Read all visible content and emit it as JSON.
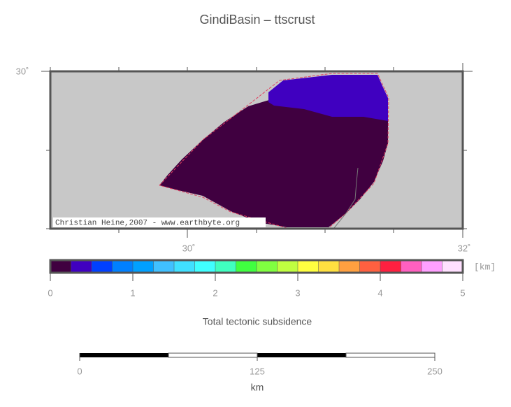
{
  "title": "GindiBasin – ttscrust",
  "map": {
    "lat_label": "30˚",
    "lon_labels": [
      "30˚",
      "32˚"
    ],
    "credit": "Christian Heine,2007 - www.earthbyte.org"
  },
  "colorbar": {
    "colors": [
      "#400040",
      "#4000c0",
      "#0040ff",
      "#0080ff",
      "#00a0ff",
      "#40c0ff",
      "#40e0ff",
      "#40ffff",
      "#40ffc0",
      "#40ff40",
      "#80ff40",
      "#c0ff40",
      "#ffff40",
      "#ffe040",
      "#ffa040",
      "#ff6040",
      "#ff2040",
      "#ff60c0",
      "#ffa0ff",
      "#ffe0ff"
    ],
    "ticks": [
      0,
      1,
      2,
      3,
      4,
      5
    ],
    "unit": "[km]",
    "label": "Total tectonic subsidence"
  },
  "scale_bar": {
    "ticks": [
      0,
      125,
      250
    ],
    "unit": "km"
  }
}
